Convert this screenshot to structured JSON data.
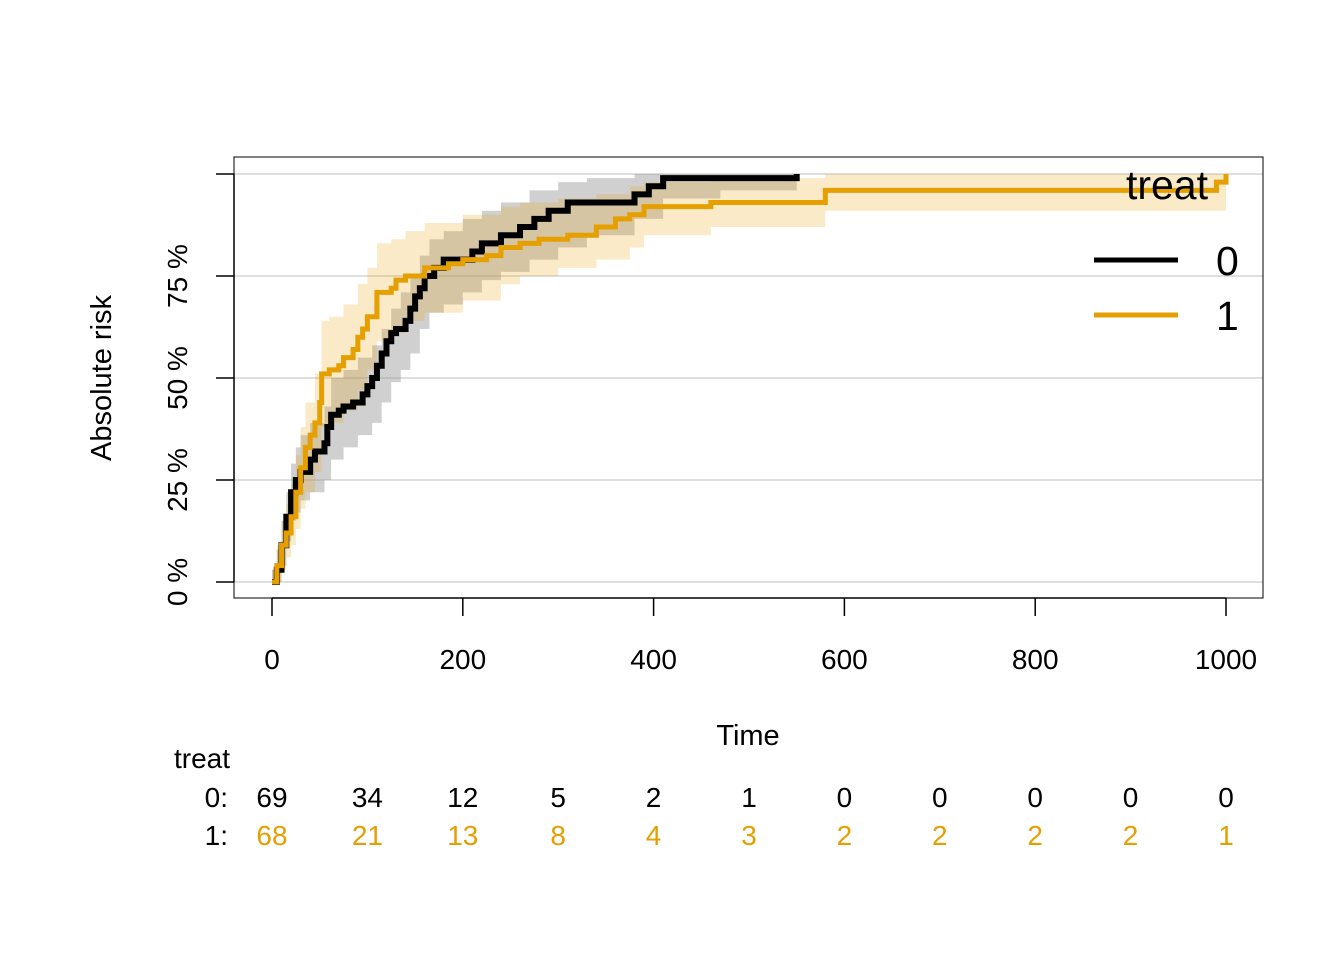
{
  "chart_data": {
    "type": "line",
    "ylabel": "Absolute risk",
    "xlabel": "Time",
    "xlim": [
      0,
      1000
    ],
    "ylim": [
      0,
      1
    ],
    "x_ticks": [
      0,
      200,
      400,
      600,
      800,
      1000
    ],
    "y_ticks": [
      0,
      0.25,
      0.5,
      0.75
    ],
    "x_tick_labels": [
      "0",
      "200",
      "400",
      "600",
      "800",
      "1000"
    ],
    "y_tick_labels": [
      "0 %",
      "25 %",
      "50 %",
      "75 %"
    ],
    "grid": "horizontal",
    "legend": {
      "title": "treat",
      "position": "top-right"
    },
    "series": [
      {
        "name": "0",
        "color": "#000000",
        "points": [
          [
            0,
            0
          ],
          [
            5,
            0.03
          ],
          [
            10,
            0.09
          ],
          [
            15,
            0.16
          ],
          [
            20,
            0.22
          ],
          [
            25,
            0.25
          ],
          [
            30,
            0.27
          ],
          [
            40,
            0.3
          ],
          [
            45,
            0.32
          ],
          [
            55,
            0.34
          ],
          [
            58,
            0.38
          ],
          [
            62,
            0.41
          ],
          [
            70,
            0.42
          ],
          [
            75,
            0.43
          ],
          [
            85,
            0.44
          ],
          [
            95,
            0.46
          ],
          [
            100,
            0.48
          ],
          [
            105,
            0.5
          ],
          [
            110,
            0.53
          ],
          [
            115,
            0.56
          ],
          [
            120,
            0.59
          ],
          [
            125,
            0.61
          ],
          [
            130,
            0.62
          ],
          [
            140,
            0.64
          ],
          [
            145,
            0.67
          ],
          [
            150,
            0.7
          ],
          [
            155,
            0.72
          ],
          [
            160,
            0.75
          ],
          [
            170,
            0.77
          ],
          [
            180,
            0.79
          ],
          [
            210,
            0.81
          ],
          [
            220,
            0.83
          ],
          [
            240,
            0.85
          ],
          [
            260,
            0.87
          ],
          [
            275,
            0.89
          ],
          [
            290,
            0.91
          ],
          [
            310,
            0.93
          ],
          [
            380,
            0.95
          ],
          [
            395,
            0.97
          ],
          [
            410,
            0.99
          ],
          [
            550,
            1.0
          ]
        ],
        "ci_lower": [
          [
            0,
            0
          ],
          [
            5,
            0.0
          ],
          [
            10,
            0.04
          ],
          [
            15,
            0.1
          ],
          [
            20,
            0.15
          ],
          [
            25,
            0.17
          ],
          [
            30,
            0.2
          ],
          [
            40,
            0.22
          ],
          [
            55,
            0.25
          ],
          [
            62,
            0.3
          ],
          [
            75,
            0.33
          ],
          [
            90,
            0.36
          ],
          [
            105,
            0.39
          ],
          [
            115,
            0.44
          ],
          [
            125,
            0.49
          ],
          [
            135,
            0.52
          ],
          [
            145,
            0.56
          ],
          [
            155,
            0.62
          ],
          [
            165,
            0.66
          ],
          [
            180,
            0.68
          ],
          [
            200,
            0.71
          ],
          [
            220,
            0.74
          ],
          [
            240,
            0.76
          ],
          [
            270,
            0.79
          ],
          [
            300,
            0.82
          ],
          [
            330,
            0.85
          ],
          [
            380,
            0.89
          ],
          [
            410,
            0.94
          ],
          [
            470,
            0.96
          ],
          [
            550,
            0.96
          ]
        ],
        "ci_upper": [
          [
            0,
            0.03
          ],
          [
            5,
            0.08
          ],
          [
            10,
            0.15
          ],
          [
            15,
            0.22
          ],
          [
            20,
            0.29
          ],
          [
            25,
            0.33
          ],
          [
            30,
            0.36
          ],
          [
            40,
            0.39
          ],
          [
            55,
            0.43
          ],
          [
            62,
            0.5
          ],
          [
            75,
            0.52
          ],
          [
            90,
            0.55
          ],
          [
            105,
            0.58
          ],
          [
            115,
            0.62
          ],
          [
            125,
            0.67
          ],
          [
            135,
            0.71
          ],
          [
            145,
            0.75
          ],
          [
            155,
            0.8
          ],
          [
            165,
            0.84
          ],
          [
            180,
            0.86
          ],
          [
            200,
            0.89
          ],
          [
            220,
            0.91
          ],
          [
            240,
            0.93
          ],
          [
            270,
            0.96
          ],
          [
            300,
            0.98
          ],
          [
            330,
            0.99
          ],
          [
            380,
            1.0
          ],
          [
            550,
            1.0
          ]
        ]
      },
      {
        "name": "1",
        "color": "#E69F00",
        "points": [
          [
            0,
            0
          ],
          [
            5,
            0.04
          ],
          [
            10,
            0.09
          ],
          [
            15,
            0.12
          ],
          [
            20,
            0.16
          ],
          [
            25,
            0.22
          ],
          [
            30,
            0.28
          ],
          [
            35,
            0.33
          ],
          [
            40,
            0.36
          ],
          [
            45,
            0.39
          ],
          [
            50,
            0.44
          ],
          [
            52,
            0.51
          ],
          [
            60,
            0.52
          ],
          [
            70,
            0.53
          ],
          [
            75,
            0.55
          ],
          [
            85,
            0.57
          ],
          [
            90,
            0.6
          ],
          [
            95,
            0.62
          ],
          [
            100,
            0.65
          ],
          [
            110,
            0.71
          ],
          [
            125,
            0.72
          ],
          [
            130,
            0.74
          ],
          [
            140,
            0.75
          ],
          [
            160,
            0.77
          ],
          [
            185,
            0.78
          ],
          [
            200,
            0.79
          ],
          [
            225,
            0.8
          ],
          [
            240,
            0.82
          ],
          [
            260,
            0.83
          ],
          [
            280,
            0.84
          ],
          [
            310,
            0.85
          ],
          [
            340,
            0.87
          ],
          [
            360,
            0.89
          ],
          [
            375,
            0.9
          ],
          [
            390,
            0.92
          ],
          [
            460,
            0.93
          ],
          [
            580,
            0.96
          ],
          [
            990,
            0.98
          ],
          [
            1000,
            1.0
          ]
        ],
        "ci_lower": [
          [
            0,
            0
          ],
          [
            5,
            0.0
          ],
          [
            10,
            0.03
          ],
          [
            15,
            0.06
          ],
          [
            20,
            0.09
          ],
          [
            25,
            0.13
          ],
          [
            30,
            0.18
          ],
          [
            35,
            0.22
          ],
          [
            45,
            0.27
          ],
          [
            52,
            0.38
          ],
          [
            60,
            0.39
          ],
          [
            75,
            0.42
          ],
          [
            90,
            0.47
          ],
          [
            100,
            0.52
          ],
          [
            110,
            0.59
          ],
          [
            125,
            0.61
          ],
          [
            140,
            0.64
          ],
          [
            160,
            0.66
          ],
          [
            200,
            0.69
          ],
          [
            240,
            0.73
          ],
          [
            260,
            0.75
          ],
          [
            300,
            0.77
          ],
          [
            340,
            0.79
          ],
          [
            375,
            0.82
          ],
          [
            390,
            0.85
          ],
          [
            460,
            0.87
          ],
          [
            580,
            0.91
          ],
          [
            990,
            0.91
          ],
          [
            1000,
            0.93
          ]
        ],
        "ci_upper": [
          [
            0,
            0.03
          ],
          [
            5,
            0.09
          ],
          [
            10,
            0.15
          ],
          [
            15,
            0.19
          ],
          [
            20,
            0.24
          ],
          [
            25,
            0.31
          ],
          [
            30,
            0.38
          ],
          [
            35,
            0.44
          ],
          [
            45,
            0.51
          ],
          [
            52,
            0.64
          ],
          [
            60,
            0.65
          ],
          [
            75,
            0.68
          ],
          [
            90,
            0.73
          ],
          [
            100,
            0.77
          ],
          [
            110,
            0.83
          ],
          [
            125,
            0.84
          ],
          [
            140,
            0.86
          ],
          [
            160,
            0.88
          ],
          [
            200,
            0.9
          ],
          [
            240,
            0.92
          ],
          [
            260,
            0.93
          ],
          [
            300,
            0.94
          ],
          [
            340,
            0.95
          ],
          [
            375,
            0.97
          ],
          [
            390,
            0.98
          ],
          [
            460,
            0.99
          ],
          [
            580,
            1.0
          ],
          [
            1000,
            1.0
          ]
        ]
      }
    ],
    "risk_table": {
      "title": "treat",
      "times": [
        0,
        100,
        200,
        300,
        400,
        500,
        600,
        700,
        800,
        900,
        1000
      ],
      "rows": [
        {
          "label": "0:",
          "color": "#000000",
          "values": [
            "69",
            "34",
            "12",
            "5",
            "2",
            "1",
            "0",
            "0",
            "0",
            "0",
            "0"
          ]
        },
        {
          "label": "1:",
          "color": "#E69F00",
          "values": [
            "68",
            "21",
            "13",
            "8",
            "4",
            "3",
            "2",
            "2",
            "2",
            "2",
            "1"
          ]
        }
      ]
    }
  }
}
